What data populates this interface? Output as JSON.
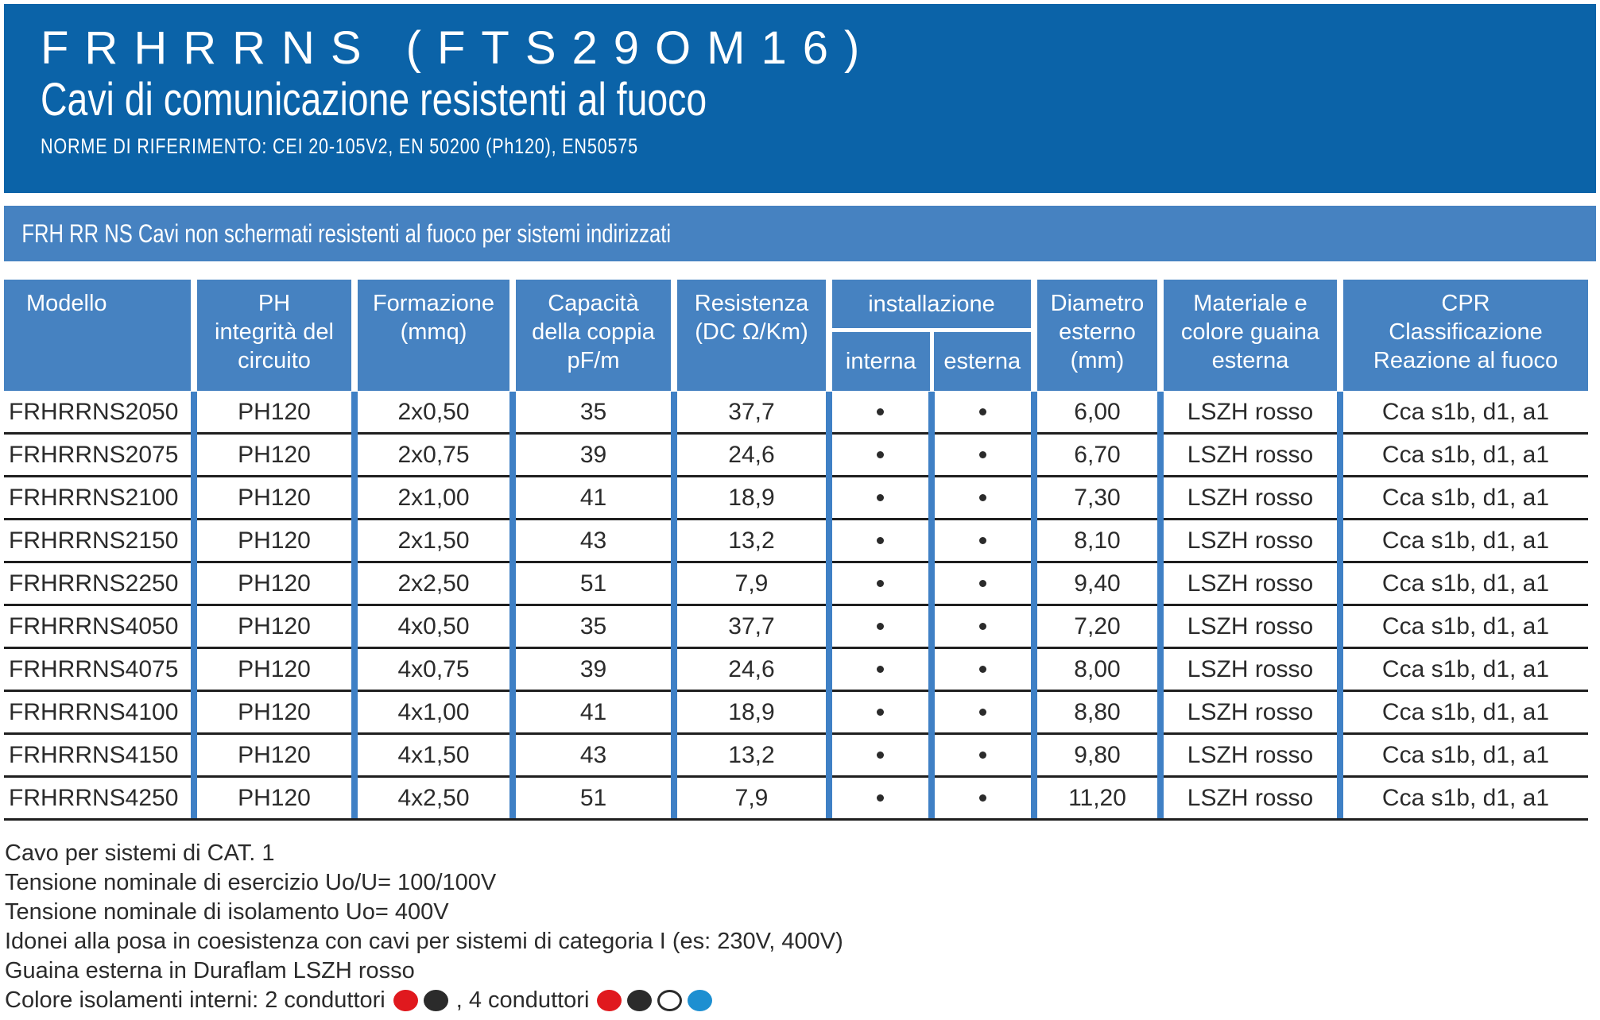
{
  "header": {
    "title": "FRHRRNS (FTS29OM16)",
    "subtitle": "Cavi di comunicazione resistenti al fuoco",
    "norms": "NORME DI RIFERIMENTO: CEI 20-105V2, EN 50200 (Ph120), EN50575"
  },
  "banner": {
    "text": "FRH RR NS Cavi non schermati resistenti al fuoco per sistemi indirizzati"
  },
  "table": {
    "columns": {
      "modello": "Modello",
      "ph": "PH\nintegrità del\ncircuito",
      "formazione": "Formazione\n(mmq)",
      "capacita": "Capacità\ndella coppia\npF/m",
      "resistenza": "Resistenza\n(DC Ω/Km)",
      "installazione": "installazione",
      "interna": "interna",
      "esterna": "esterna",
      "diametro": "Diametro\nesterno\n(mm)",
      "materiale": "Materiale e\ncolore guaina\nesterna",
      "cpr": "CPR\nClassificazione\nReazione al fuoco"
    },
    "rows": [
      {
        "modello": "FRHRRNS2050",
        "ph": "PH120",
        "formazione": "2x0,50",
        "capacita": "35",
        "resistenza": "37,7",
        "interna": true,
        "esterna": true,
        "diametro": "6,00",
        "materiale": "LSZH rosso",
        "cpr": "Cca s1b, d1, a1"
      },
      {
        "modello": "FRHRRNS2075",
        "ph": "PH120",
        "formazione": "2x0,75",
        "capacita": "39",
        "resistenza": "24,6",
        "interna": true,
        "esterna": true,
        "diametro": "6,70",
        "materiale": "LSZH rosso",
        "cpr": "Cca s1b, d1, a1"
      },
      {
        "modello": "FRHRRNS2100",
        "ph": "PH120",
        "formazione": "2x1,00",
        "capacita": "41",
        "resistenza": "18,9",
        "interna": true,
        "esterna": true,
        "diametro": "7,30",
        "materiale": "LSZH rosso",
        "cpr": "Cca s1b, d1, a1"
      },
      {
        "modello": "FRHRRNS2150",
        "ph": "PH120",
        "formazione": "2x1,50",
        "capacita": "43",
        "resistenza": "13,2",
        "interna": true,
        "esterna": true,
        "diametro": "8,10",
        "materiale": "LSZH rosso",
        "cpr": "Cca s1b, d1, a1"
      },
      {
        "modello": "FRHRRNS2250",
        "ph": "PH120",
        "formazione": "2x2,50",
        "capacita": "51",
        "resistenza": "7,9",
        "interna": true,
        "esterna": true,
        "diametro": "9,40",
        "materiale": "LSZH rosso",
        "cpr": "Cca s1b, d1, a1"
      },
      {
        "modello": "FRHRRNS4050",
        "ph": "PH120",
        "formazione": "4x0,50",
        "capacita": "35",
        "resistenza": "37,7",
        "interna": true,
        "esterna": true,
        "diametro": "7,20",
        "materiale": "LSZH rosso",
        "cpr": "Cca s1b, d1, a1"
      },
      {
        "modello": "FRHRRNS4075",
        "ph": "PH120",
        "formazione": "4x0,75",
        "capacita": "39",
        "resistenza": "24,6",
        "interna": true,
        "esterna": true,
        "diametro": "8,00",
        "materiale": "LSZH rosso",
        "cpr": "Cca s1b, d1, a1"
      },
      {
        "modello": "FRHRRNS4100",
        "ph": "PH120",
        "formazione": "4x1,00",
        "capacita": "41",
        "resistenza": "18,9",
        "interna": true,
        "esterna": true,
        "diametro": "8,80",
        "materiale": "LSZH rosso",
        "cpr": "Cca s1b, d1, a1"
      },
      {
        "modello": "FRHRRNS4150",
        "ph": "PH120",
        "formazione": "4x1,50",
        "capacita": "43",
        "resistenza": "13,2",
        "interna": true,
        "esterna": true,
        "diametro": "9,80",
        "materiale": "LSZH rosso",
        "cpr": "Cca s1b, d1, a1"
      },
      {
        "modello": "FRHRRNS4250",
        "ph": "PH120",
        "formazione": "4x2,50",
        "capacita": "51",
        "resistenza": "7,9",
        "interna": true,
        "esterna": true,
        "diametro": "11,20",
        "materiale": "LSZH rosso",
        "cpr": "Cca s1b, d1, a1"
      }
    ]
  },
  "notes": [
    "Cavo per sistemi di CAT. 1",
    "Tensione nominale di esercizio Uo/U= 100/100V",
    "Tensione nominale di isolamento Uo= 400V",
    "Idonei alla posa in coesistenza con cavi per sistemi di categoria I (es: 230V, 400V)",
    "Guaina esterna in Duraflam LSZH rosso"
  ],
  "legend": {
    "text_before": "Colore isolamenti interni: 2 conduttori",
    "text_middle": ", 4 conduttori",
    "dots_two": [
      {
        "name": "red",
        "hex": "#e0191e"
      },
      {
        "name": "black",
        "hex": "#2b2b2b"
      }
    ],
    "dots_four": [
      {
        "name": "red",
        "hex": "#e0191e"
      },
      {
        "name": "black",
        "hex": "#2b2b2b"
      },
      {
        "name": "white",
        "hex": "#ffffff",
        "border": "#2b2b2b"
      },
      {
        "name": "blue",
        "hex": "#1d8fd1"
      }
    ]
  },
  "colors": {
    "banner_dark": "#0b63a8",
    "banner_light": "#4682c1",
    "grid_blue": "#3f80c5",
    "line_dark": "#1f1f1f",
    "dot_red": "#e0191e",
    "dot_black": "#2b2b2b",
    "dot_white": "#ffffff",
    "dot_blue": "#1d8fd1"
  }
}
